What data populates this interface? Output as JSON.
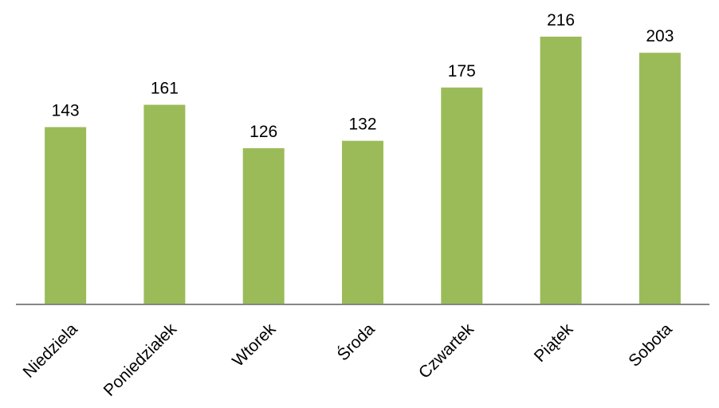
{
  "chart_data": {
    "type": "bar",
    "categories": [
      "Niedziela",
      "Poniedziałek",
      "Wtorek",
      "Środa",
      "Czwartek",
      "Piątek",
      "Sobota"
    ],
    "values": [
      143,
      161,
      126,
      132,
      175,
      216,
      203
    ],
    "title": "",
    "xlabel": "",
    "ylabel": "",
    "ylim": [
      0,
      240
    ],
    "grid": false,
    "legend": "none",
    "data_labels": true,
    "bar_color": "#9BBB59",
    "axis_color": "#868686"
  }
}
